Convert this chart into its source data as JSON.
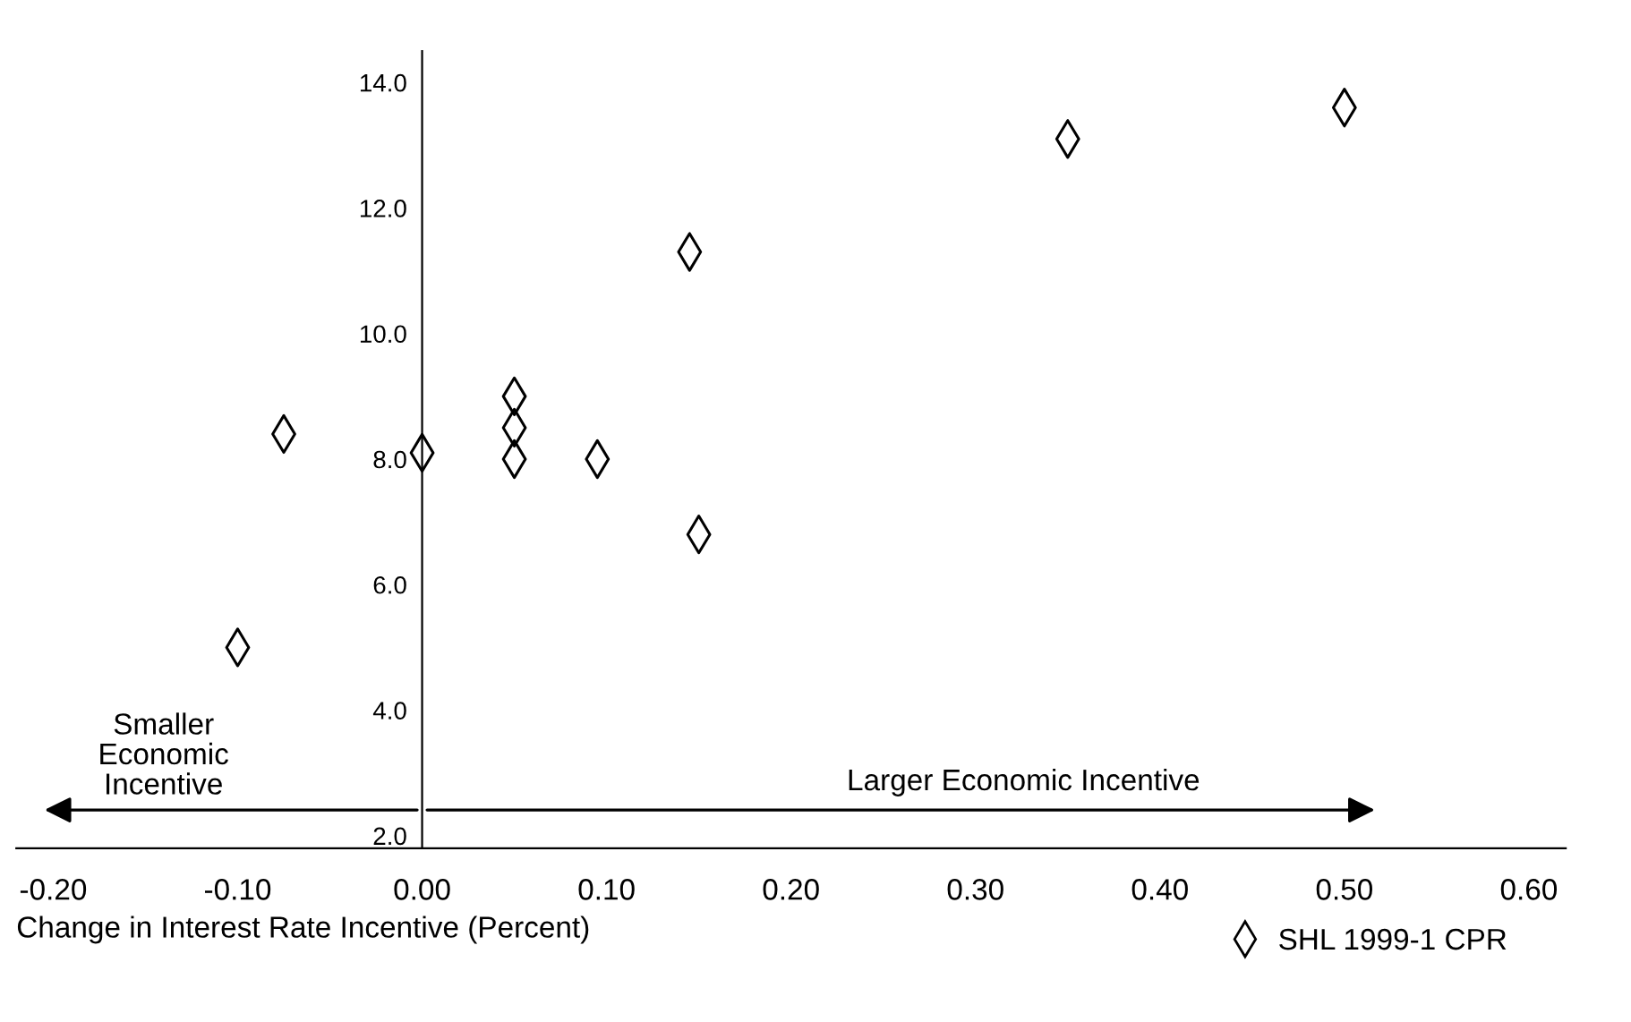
{
  "chart_data": {
    "type": "scatter",
    "xlabel": "Change in Interest Rate Incentive (Percent)",
    "x": [
      -0.1,
      -0.075,
      0.0,
      0.05,
      0.05,
      0.05,
      0.095,
      0.145,
      0.15,
      0.35,
      0.5
    ],
    "series": [
      {
        "name": "SHL 1999-1 CPR",
        "color": "#000000",
        "values": [
          5.0,
          8.4,
          8.1,
          9.0,
          8.5,
          8.0,
          8.0,
          11.3,
          6.8,
          13.1,
          13.6
        ]
      }
    ],
    "marker": "diamond",
    "legend": "bottom right",
    "grid": false,
    "xlim": [
      -0.22,
      0.62
    ],
    "xticks": [
      {
        "value": -0.2,
        "label": "-0.20"
      },
      {
        "value": -0.1,
        "label": "-0.10"
      },
      {
        "value": 0.0,
        "label": "0.00"
      },
      {
        "value": 0.1,
        "label": "0.10"
      },
      {
        "value": 0.2,
        "label": "0.20"
      },
      {
        "value": 0.3,
        "label": "0.30"
      },
      {
        "value": 0.4,
        "label": "0.40"
      },
      {
        "value": 0.5,
        "label": "0.50"
      },
      {
        "value": 0.6,
        "label": "0.60"
      }
    ],
    "ylim": [
      1.8,
      14.5
    ],
    "yticks": [
      {
        "value": 2,
        "label": "2.0"
      },
      {
        "value": 4,
        "label": "4.0"
      },
      {
        "value": 6,
        "label": "6.0"
      },
      {
        "value": 8,
        "label": "8.0"
      },
      {
        "value": 10,
        "label": "10.0"
      },
      {
        "value": 12,
        "label": "12.0"
      },
      {
        "value": 14,
        "label": "14.0"
      }
    ],
    "annotations": [
      "Smaller\nEconomic\nIncentive",
      "Larger Economic Incentive"
    ]
  }
}
